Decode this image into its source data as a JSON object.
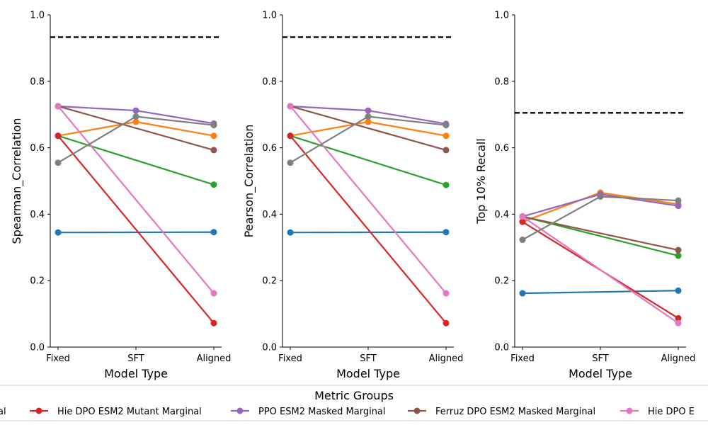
{
  "chart_data": [
    {
      "type": "line",
      "xlabel": "Model Type",
      "ylabel": "Spearman_Correlation",
      "categories": [
        "Fixed",
        "SFT",
        "Aligned"
      ],
      "ylim": [
        0.0,
        1.0
      ],
      "yticks": [
        "0.0",
        "0.2",
        "0.4",
        "0.6",
        "0.8",
        "1.0"
      ],
      "reference_line": 0.933,
      "series": [
        {
          "color": "#1f77b4",
          "values": [
            0.345,
            null,
            0.346
          ]
        },
        {
          "color": "#ff7f0e",
          "values": [
            0.636,
            0.678,
            0.636
          ]
        },
        {
          "color": "#2ca02c",
          "values": [
            0.636,
            null,
            0.489
          ]
        },
        {
          "color": "#d62728",
          "values": [
            0.636,
            null,
            0.072
          ]
        },
        {
          "color": "#9467bd",
          "values": [
            0.725,
            0.712,
            0.673
          ]
        },
        {
          "color": "#8c564b",
          "values": [
            0.725,
            null,
            0.593
          ]
        },
        {
          "color": "#e377c2",
          "values": [
            0.725,
            null,
            0.162
          ]
        },
        {
          "color": "#7f7f7f",
          "values": [
            0.555,
            0.694,
            0.668
          ]
        }
      ]
    },
    {
      "type": "line",
      "xlabel": "Model Type",
      "ylabel": "Pearson_Correlation",
      "categories": [
        "Fixed",
        "SFT",
        "Aligned"
      ],
      "ylim": [
        0.0,
        1.0
      ],
      "yticks": [
        "0.0",
        "0.2",
        "0.4",
        "0.6",
        "0.8",
        "1.0"
      ],
      "reference_line": 0.933,
      "series": [
        {
          "color": "#1f77b4",
          "values": [
            0.345,
            null,
            0.346
          ]
        },
        {
          "color": "#ff7f0e",
          "values": [
            0.636,
            0.678,
            0.636
          ]
        },
        {
          "color": "#2ca02c",
          "values": [
            0.636,
            null,
            0.488
          ]
        },
        {
          "color": "#d62728",
          "values": [
            0.636,
            null,
            0.072
          ]
        },
        {
          "color": "#9467bd",
          "values": [
            0.725,
            0.712,
            0.672
          ]
        },
        {
          "color": "#8c564b",
          "values": [
            0.725,
            null,
            0.593
          ]
        },
        {
          "color": "#e377c2",
          "values": [
            0.725,
            null,
            0.162
          ]
        },
        {
          "color": "#7f7f7f",
          "values": [
            0.555,
            0.694,
            0.668
          ]
        }
      ]
    },
    {
      "type": "line",
      "xlabel": "Model Type",
      "ylabel": "Top 10% Recall",
      "categories": [
        "Fixed",
        "SFT",
        "Aligned"
      ],
      "ylim": [
        0.0,
        1.0
      ],
      "yticks": [
        "0.0",
        "0.2",
        "0.4",
        "0.6",
        "0.8",
        "1.0"
      ],
      "reference_line": 0.705,
      "series": [
        {
          "color": "#1f77b4",
          "values": [
            0.162,
            null,
            0.17
          ]
        },
        {
          "color": "#ff7f0e",
          "values": [
            0.377,
            0.465,
            0.43
          ]
        },
        {
          "color": "#2ca02c",
          "values": [
            0.393,
            null,
            0.275
          ]
        },
        {
          "color": "#d62728",
          "values": [
            0.377,
            null,
            0.087
          ]
        },
        {
          "color": "#9467bd",
          "values": [
            0.393,
            0.46,
            0.425
          ]
        },
        {
          "color": "#8c564b",
          "values": [
            0.393,
            null,
            0.292
          ]
        },
        {
          "color": "#e377c2",
          "values": [
            0.393,
            null,
            0.072
          ]
        },
        {
          "color": "#7f7f7f",
          "values": [
            0.323,
            0.453,
            0.441
          ]
        }
      ]
    }
  ],
  "legend": {
    "title": "Metric Groups",
    "items": [
      {
        "label": "al",
        "color": "#ff7f0e"
      },
      {
        "label": "Hie DPO ESM2 Mutant Marginal",
        "color": "#d62728"
      },
      {
        "label": "PPO ESM2 Masked Marginal",
        "color": "#9467bd"
      },
      {
        "label": "Ferruz DPO ESM2 Masked Marginal",
        "color": "#8c564b"
      },
      {
        "label": "Hie DPO E",
        "color": "#e377c2"
      }
    ]
  }
}
